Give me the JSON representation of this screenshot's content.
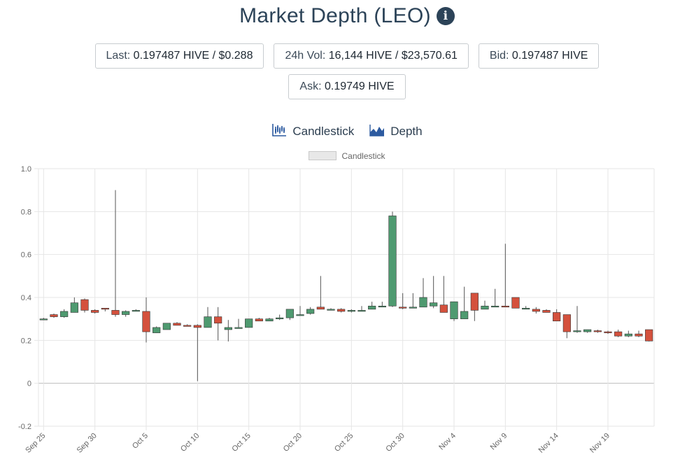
{
  "page": {
    "title": "Market Depth (LEO)",
    "info_icon": "info-circle-icon"
  },
  "stats": [
    {
      "label": "Last:",
      "value": "0.197487 HIVE / $0.288"
    },
    {
      "label": "24h Vol:",
      "value": "16,144 HIVE / $23,570.61"
    },
    {
      "label": "Bid:",
      "value": "0.197487 HIVE"
    },
    {
      "label": "Ask:",
      "value": "0.19749 HIVE"
    }
  ],
  "tabs": [
    {
      "label": "Candlestick",
      "icon": "candlestick-chart-icon"
    },
    {
      "label": "Depth",
      "icon": "depth-chart-icon"
    }
  ],
  "colors": {
    "up": "#4f9a70",
    "down": "#d4513d",
    "grid": "#e6e6e6",
    "zero_line": "#bdbdbd",
    "text": "#666666",
    "title": "#2c4358"
  },
  "chart_data": {
    "type": "candlestick",
    "legend": [
      "Candlestick"
    ],
    "legend_position": "top",
    "grid": true,
    "ylim": [
      -0.2,
      1.0
    ],
    "y_ticks": [
      "1.0",
      "0.8",
      "0.6",
      "0.4",
      "0.2",
      "0",
      "-0.2"
    ],
    "x_tick_labels": [
      "Sep 25",
      "Sep 30",
      "Oct 5",
      "Oct 10",
      "Oct 15",
      "Oct 20",
      "Oct 25",
      "Oct 30",
      "Nov 4",
      "Nov 9",
      "Nov 14",
      "Nov 19"
    ],
    "candles": [
      {
        "date": "Sep 25",
        "o": 0.3,
        "h": 0.305,
        "l": 0.295,
        "c": 0.3
      },
      {
        "date": "Sep 26",
        "o": 0.32,
        "h": 0.325,
        "l": 0.305,
        "c": 0.31
      },
      {
        "date": "Sep 27",
        "o": 0.31,
        "h": 0.345,
        "l": 0.305,
        "c": 0.335
      },
      {
        "date": "Sep 28",
        "o": 0.33,
        "h": 0.4,
        "l": 0.33,
        "c": 0.375
      },
      {
        "date": "Sep 29",
        "o": 0.39,
        "h": 0.395,
        "l": 0.33,
        "c": 0.34
      },
      {
        "date": "Sep 30",
        "o": 0.34,
        "h": 0.345,
        "l": 0.325,
        "c": 0.33
      },
      {
        "date": "Oct 1",
        "o": 0.35,
        "h": 0.35,
        "l": 0.335,
        "c": 0.345
      },
      {
        "date": "Oct 2",
        "o": 0.34,
        "h": 0.9,
        "l": 0.31,
        "c": 0.32
      },
      {
        "date": "Oct 3",
        "o": 0.32,
        "h": 0.34,
        "l": 0.31,
        "c": 0.335
      },
      {
        "date": "Oct 4",
        "o": 0.34,
        "h": 0.345,
        "l": 0.335,
        "c": 0.34
      },
      {
        "date": "Oct 5",
        "o": 0.335,
        "h": 0.4,
        "l": 0.19,
        "c": 0.24
      },
      {
        "date": "Oct 6",
        "o": 0.235,
        "h": 0.265,
        "l": 0.235,
        "c": 0.26
      },
      {
        "date": "Oct 7",
        "o": 0.25,
        "h": 0.28,
        "l": 0.25,
        "c": 0.28
      },
      {
        "date": "Oct 8",
        "o": 0.28,
        "h": 0.285,
        "l": 0.27,
        "c": 0.27
      },
      {
        "date": "Oct 9",
        "o": 0.27,
        "h": 0.275,
        "l": 0.265,
        "c": 0.265
      },
      {
        "date": "Oct 10",
        "o": 0.27,
        "h": 0.275,
        "l": 0.01,
        "c": 0.26
      },
      {
        "date": "Oct 11",
        "o": 0.26,
        "h": 0.355,
        "l": 0.26,
        "c": 0.31
      },
      {
        "date": "Oct 12",
        "o": 0.31,
        "h": 0.355,
        "l": 0.2,
        "c": 0.28
      },
      {
        "date": "Oct 13",
        "o": 0.25,
        "h": 0.295,
        "l": 0.195,
        "c": 0.26
      },
      {
        "date": "Oct 14",
        "o": 0.255,
        "h": 0.3,
        "l": 0.255,
        "c": 0.26
      },
      {
        "date": "Oct 15",
        "o": 0.26,
        "h": 0.3,
        "l": 0.26,
        "c": 0.3
      },
      {
        "date": "Oct 16",
        "o": 0.3,
        "h": 0.305,
        "l": 0.29,
        "c": 0.29
      },
      {
        "date": "Oct 17",
        "o": 0.29,
        "h": 0.305,
        "l": 0.29,
        "c": 0.3
      },
      {
        "date": "Oct 18",
        "o": 0.3,
        "h": 0.32,
        "l": 0.295,
        "c": 0.305
      },
      {
        "date": "Oct 19",
        "o": 0.305,
        "h": 0.345,
        "l": 0.295,
        "c": 0.345
      },
      {
        "date": "Oct 20",
        "o": 0.32,
        "h": 0.36,
        "l": 0.32,
        "c": 0.32
      },
      {
        "date": "Oct 21",
        "o": 0.325,
        "h": 0.355,
        "l": 0.32,
        "c": 0.345
      },
      {
        "date": "Oct 22",
        "o": 0.355,
        "h": 0.5,
        "l": 0.345,
        "c": 0.345
      },
      {
        "date": "Oct 23",
        "o": 0.345,
        "h": 0.35,
        "l": 0.34,
        "c": 0.345
      },
      {
        "date": "Oct 24",
        "o": 0.345,
        "h": 0.35,
        "l": 0.33,
        "c": 0.335
      },
      {
        "date": "Oct 25",
        "o": 0.335,
        "h": 0.345,
        "l": 0.33,
        "c": 0.34
      },
      {
        "date": "Oct 26",
        "o": 0.335,
        "h": 0.36,
        "l": 0.335,
        "c": 0.34
      },
      {
        "date": "Oct 27",
        "o": 0.345,
        "h": 0.38,
        "l": 0.345,
        "c": 0.36
      },
      {
        "date": "Oct 28",
        "o": 0.36,
        "h": 0.38,
        "l": 0.355,
        "c": 0.36
      },
      {
        "date": "Oct 29",
        "o": 0.36,
        "h": 0.8,
        "l": 0.355,
        "c": 0.78
      },
      {
        "date": "Oct 30",
        "o": 0.355,
        "h": 0.42,
        "l": 0.345,
        "c": 0.35
      },
      {
        "date": "Oct 31",
        "o": 0.35,
        "h": 0.42,
        "l": 0.35,
        "c": 0.355
      },
      {
        "date": "Nov 1",
        "o": 0.355,
        "h": 0.49,
        "l": 0.355,
        "c": 0.4
      },
      {
        "date": "Nov 2",
        "o": 0.36,
        "h": 0.5,
        "l": 0.35,
        "c": 0.375
      },
      {
        "date": "Nov 3",
        "o": 0.365,
        "h": 0.5,
        "l": 0.33,
        "c": 0.33
      },
      {
        "date": "Nov 4",
        "o": 0.3,
        "h": 0.38,
        "l": 0.29,
        "c": 0.38
      },
      {
        "date": "Nov 5",
        "o": 0.3,
        "h": 0.45,
        "l": 0.3,
        "c": 0.335
      },
      {
        "date": "Nov 6",
        "o": 0.42,
        "h": 0.42,
        "l": 0.29,
        "c": 0.34
      },
      {
        "date": "Nov 7",
        "o": 0.345,
        "h": 0.385,
        "l": 0.345,
        "c": 0.36
      },
      {
        "date": "Nov 8",
        "o": 0.355,
        "h": 0.44,
        "l": 0.355,
        "c": 0.36
      },
      {
        "date": "Nov 9",
        "o": 0.36,
        "h": 0.65,
        "l": 0.355,
        "c": 0.355
      },
      {
        "date": "Nov 10",
        "o": 0.4,
        "h": 0.4,
        "l": 0.35,
        "c": 0.35
      },
      {
        "date": "Nov 11",
        "o": 0.35,
        "h": 0.36,
        "l": 0.345,
        "c": 0.35
      },
      {
        "date": "Nov 12",
        "o": 0.345,
        "h": 0.355,
        "l": 0.325,
        "c": 0.335
      },
      {
        "date": "Nov 13",
        "o": 0.34,
        "h": 0.345,
        "l": 0.33,
        "c": 0.33
      },
      {
        "date": "Nov 14",
        "o": 0.33,
        "h": 0.345,
        "l": 0.29,
        "c": 0.29
      },
      {
        "date": "Nov 15",
        "o": 0.32,
        "h": 0.32,
        "l": 0.21,
        "c": 0.24
      },
      {
        "date": "Nov 16",
        "o": 0.24,
        "h": 0.36,
        "l": 0.235,
        "c": 0.245
      },
      {
        "date": "Nov 17",
        "o": 0.24,
        "h": 0.25,
        "l": 0.235,
        "c": 0.25
      },
      {
        "date": "Nov 18",
        "o": 0.245,
        "h": 0.25,
        "l": 0.235,
        "c": 0.24
      },
      {
        "date": "Nov 19",
        "o": 0.24,
        "h": 0.245,
        "l": 0.23,
        "c": 0.235
      },
      {
        "date": "Nov 20",
        "o": 0.24,
        "h": 0.25,
        "l": 0.215,
        "c": 0.22
      },
      {
        "date": "Nov 21",
        "o": 0.22,
        "h": 0.245,
        "l": 0.215,
        "c": 0.23
      },
      {
        "date": "Nov 22",
        "o": 0.23,
        "h": 0.245,
        "l": 0.215,
        "c": 0.22
      },
      {
        "date": "Nov 23",
        "o": 0.25,
        "h": 0.25,
        "l": 0.195,
        "c": 0.197
      }
    ]
  }
}
